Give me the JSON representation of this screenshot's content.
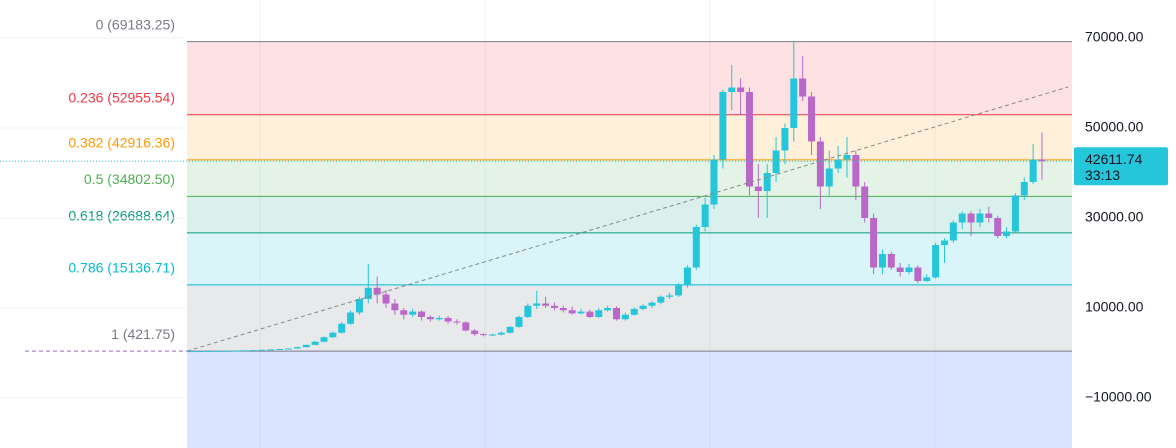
{
  "chart_data": {
    "type": "candlestick",
    "ylim": [
      -21111,
      78444
    ],
    "yticks": [
      {
        "value": 70000,
        "label": "70000.00"
      },
      {
        "value": 50000,
        "label": "50000.00"
      },
      {
        "value": 30000,
        "label": "30000.00"
      },
      {
        "value": 10000,
        "label": "10000.00"
      },
      {
        "value": -10000,
        "label": "−10000.00"
      }
    ],
    "up_color": "#26c6da",
    "down_color": "#ba68c8",
    "fib_levels": [
      {
        "label": "0 (69183.25)",
        "price": 69183.25,
        "color": "#787b86",
        "fill": "rgba(242,54,69,0.15)"
      },
      {
        "label": "0.236 (52955.54)",
        "price": 52955.54,
        "color": "#f23645",
        "fill": "rgba(255,152,0,0.15)"
      },
      {
        "label": "0.382 (42916.36)",
        "price": 42916.36,
        "color": "#ff9800",
        "fill": "rgba(76,175,80,0.15)"
      },
      {
        "label": "0.5 (34802.50)",
        "price": 34802.5,
        "color": "#4caf50",
        "fill": "rgba(8,153,129,0.15)"
      },
      {
        "label": "0.618 (26688.64)",
        "price": 26688.64,
        "color": "#089981",
        "fill": "rgba(0,188,212,0.15)"
      },
      {
        "label": "0.786 (15136.71)",
        "price": 15136.71,
        "color": "#00bcd4",
        "fill": "rgba(120,123,134,0.17)"
      },
      {
        "label": "1 (421.75)",
        "price": 421.75,
        "color": "#787b86",
        "fill": "rgba(41,98,255,0.17)"
      }
    ],
    "last_price": 42611.74,
    "last_price_label": "42611.74",
    "countdown": "33:13",
    "open": [
      400,
      420,
      430,
      450,
      480,
      520,
      560,
      600,
      650,
      700,
      800,
      900,
      1000,
      1300,
      1800,
      2500,
      3500,
      4500,
      6500,
      9000,
      12000,
      14500,
      13000,
      11000,
      9500,
      8500,
      9200,
      8000,
      7500,
      7800,
      7000,
      6800,
      5000,
      4200,
      4000,
      4100,
      4500,
      5800,
      8000,
      10500,
      11000,
      10500,
      10000,
      9500,
      8800,
      9200,
      8000,
      9500,
      10000,
      7500,
      8500,
      9800,
      10500,
      11200,
      12500,
      12800,
      15000,
      19000,
      28000,
      33000,
      43000,
      58000,
      59000,
      58000,
      37000,
      36000,
      40000,
      45000,
      50000,
      61000,
      57000,
      47000,
      37000,
      41000,
      43000,
      44000,
      37000,
      30000,
      19000,
      22000,
      19000,
      18000,
      19000,
      16000,
      16800,
      24000,
      25000,
      29000,
      31000,
      29000,
      31000,
      30000,
      26000,
      27000,
      35000,
      38000,
      43000
    ],
    "high": [
      440,
      450,
      470,
      500,
      540,
      580,
      620,
      680,
      730,
      830,
      950,
      1050,
      1400,
      1900,
      2700,
      3700,
      4800,
      6900,
      9500,
      12500,
      19800,
      17000,
      14000,
      12000,
      10000,
      9800,
      9500,
      8400,
      8300,
      8200,
      7500,
      7000,
      5300,
      4400,
      4300,
      4800,
      6000,
      8300,
      11000,
      13800,
      12500,
      11200,
      10500,
      10300,
      9800,
      9600,
      10000,
      10500,
      10400,
      9000,
      10200,
      10800,
      11500,
      12800,
      13400,
      15500,
      19500,
      28500,
      34500,
      44000,
      58500,
      64000,
      61000,
      59000,
      42000,
      42000,
      48000,
      51000,
      69000,
      66000,
      58000,
      48000,
      45000,
      46000,
      48000,
      45000,
      38000,
      31000,
      23000,
      22500,
      20000,
      19800,
      19500,
      17500,
      24500,
      25500,
      29500,
      31500,
      31500,
      32000,
      32500,
      30500,
      28000,
      35500,
      39000,
      46500,
      49000
    ],
    "low": [
      390,
      410,
      420,
      440,
      470,
      500,
      540,
      580,
      630,
      680,
      780,
      870,
      980,
      1250,
      1750,
      2400,
      3300,
      4300,
      6200,
      8500,
      11000,
      11000,
      10000,
      8500,
      7500,
      8000,
      7200,
      7000,
      7200,
      6500,
      6300,
      4800,
      3800,
      3700,
      3800,
      3900,
      4300,
      5600,
      7800,
      9800,
      10000,
      9500,
      9000,
      8500,
      8600,
      7800,
      7800,
      9200,
      7200,
      7200,
      8300,
      9500,
      10000,
      10800,
      12000,
      12500,
      14500,
      18500,
      27000,
      32000,
      41000,
      54000,
      53000,
      35000,
      30000,
      30000,
      38000,
      42000,
      47000,
      56000,
      44000,
      32000,
      35000,
      40000,
      39000,
      34000,
      29000,
      17500,
      17500,
      18500,
      17000,
      17500,
      15500,
      15800,
      16500,
      20000,
      24500,
      27500,
      26000,
      28000,
      29000,
      25500,
      25500,
      26500,
      34000,
      37500,
      38500
    ],
    "close": [
      420,
      430,
      450,
      480,
      520,
      560,
      600,
      650,
      700,
      800,
      900,
      1000,
      1300,
      1800,
      2500,
      3500,
      4500,
      6500,
      9000,
      12000,
      14500,
      13000,
      11000,
      9500,
      8500,
      9200,
      8000,
      7500,
      7800,
      7000,
      6800,
      5000,
      4200,
      4000,
      4100,
      4500,
      5800,
      8000,
      10500,
      11000,
      10500,
      10000,
      9500,
      8800,
      9200,
      8000,
      9500,
      10000,
      7500,
      8500,
      9800,
      10500,
      11200,
      12500,
      12800,
      15000,
      19000,
      28000,
      33000,
      43000,
      58000,
      59000,
      58000,
      37000,
      36000,
      40000,
      45000,
      50000,
      61000,
      57000,
      47000,
      37000,
      41000,
      43000,
      44000,
      37000,
      30000,
      19000,
      22000,
      19000,
      18000,
      19000,
      16000,
      16800,
      24000,
      25000,
      29000,
      31000,
      29000,
      31000,
      30000,
      26000,
      27000,
      35000,
      38000,
      43000,
      42611.74
    ]
  }
}
